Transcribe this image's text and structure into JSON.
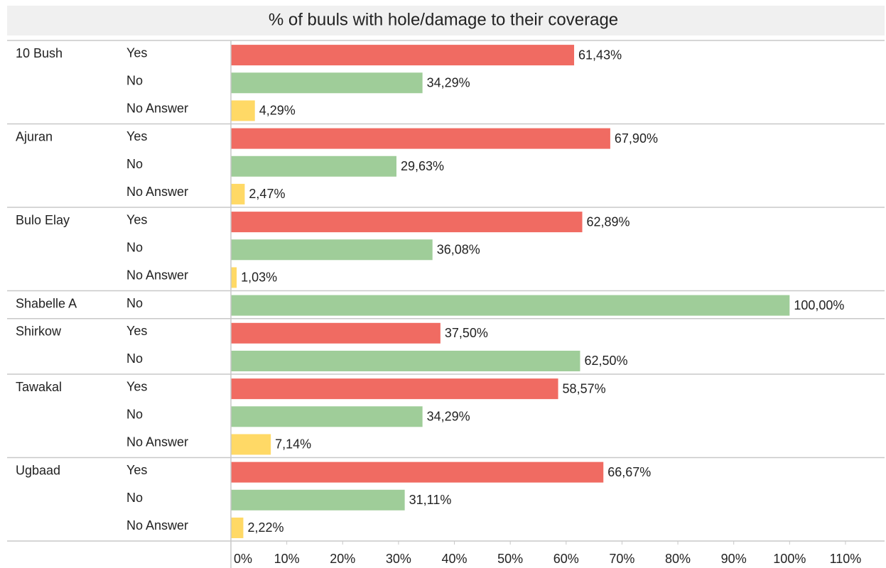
{
  "chart_data": {
    "type": "grouped-hbar",
    "title": "% of buuls with hole/damage to their coverage",
    "palette": {
      "Yes": "#f06b62",
      "No": "#9fcd99",
      "No Answer": "#ffd966"
    },
    "groups": [
      {
        "name": "10 Bush",
        "answers": [
          "Yes",
          "No",
          "No Answer"
        ],
        "values": [
          61.43,
          34.29,
          4.29
        ],
        "value_labels": [
          "61,43%",
          "34,29%",
          "4,29%"
        ]
      },
      {
        "name": "Ajuran",
        "answers": [
          "Yes",
          "No",
          "No Answer"
        ],
        "values": [
          67.9,
          29.63,
          2.47
        ],
        "value_labels": [
          "67,90%",
          "29,63%",
          "2,47%"
        ]
      },
      {
        "name": "Bulo Elay",
        "answers": [
          "Yes",
          "No",
          "No Answer"
        ],
        "values": [
          62.89,
          36.08,
          1.03
        ],
        "value_labels": [
          "62,89%",
          "36,08%",
          "1,03%"
        ]
      },
      {
        "name": "Shabelle A",
        "answers": [
          "No"
        ],
        "values": [
          100.0
        ],
        "value_labels": [
          "100,00%"
        ]
      },
      {
        "name": "Shirkow",
        "answers": [
          "Yes",
          "No"
        ],
        "values": [
          37.5,
          62.5
        ],
        "value_labels": [
          "37,50%",
          "62,50%"
        ]
      },
      {
        "name": "Tawakal",
        "answers": [
          "Yes",
          "No",
          "No Answer"
        ],
        "values": [
          58.57,
          34.29,
          7.14
        ],
        "value_labels": [
          "58,57%",
          "34,29%",
          "7,14%"
        ]
      },
      {
        "name": "Ugbaad",
        "answers": [
          "Yes",
          "No",
          "No Answer"
        ],
        "values": [
          66.67,
          31.11,
          2.22
        ],
        "value_labels": [
          "66,67%",
          "31,11%",
          "2,22%"
        ]
      }
    ],
    "xlim": [
      0,
      117
    ],
    "xticks": [
      {
        "value": 0,
        "label": "0%"
      },
      {
        "value": 10,
        "label": "10%"
      },
      {
        "value": 20,
        "label": "20%"
      },
      {
        "value": 30,
        "label": "30%"
      },
      {
        "value": 40,
        "label": "40%"
      },
      {
        "value": 50,
        "label": "50%"
      },
      {
        "value": 60,
        "label": "60%"
      },
      {
        "value": 70,
        "label": "70%"
      },
      {
        "value": 80,
        "label": "80%"
      },
      {
        "value": 90,
        "label": "90%"
      },
      {
        "value": 100,
        "label": "100%"
      },
      {
        "value": 110,
        "label": "110%"
      }
    ]
  }
}
